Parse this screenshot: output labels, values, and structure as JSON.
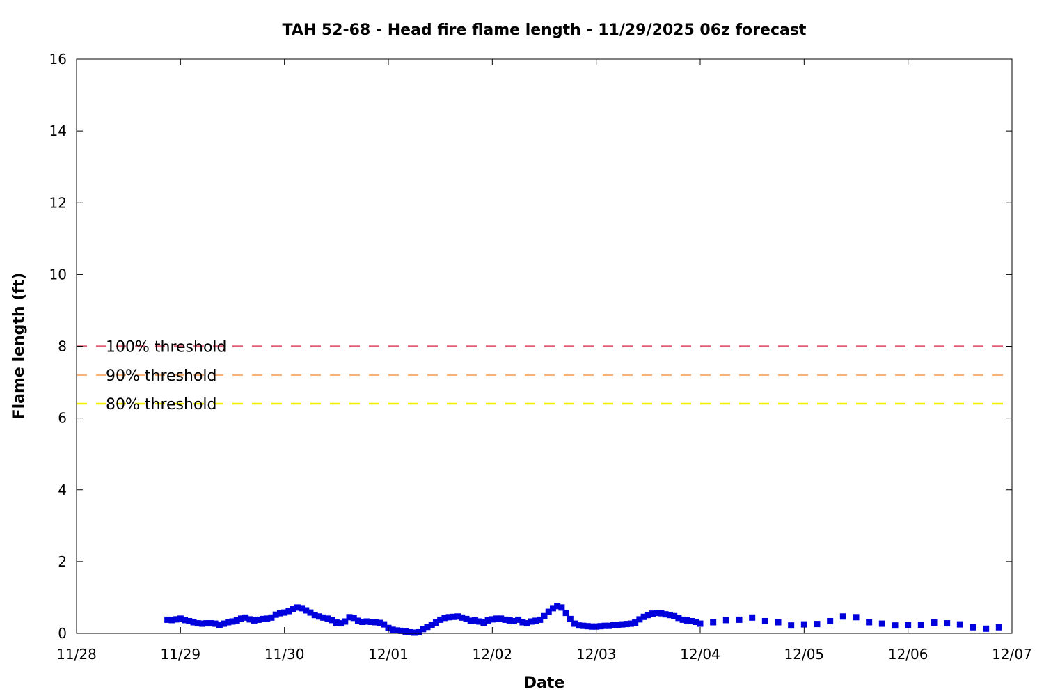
{
  "chart_data": {
    "type": "scatter",
    "title": "TAH 52-68 - Head fire flame length - 11/29/2025 06z forecast",
    "xlabel": "Date",
    "ylabel": "Flame length (ft)",
    "x_ticks": [
      "11/28",
      "11/29",
      "11/30",
      "12/01",
      "12/02",
      "12/03",
      "12/04",
      "12/05",
      "12/06",
      "12/07"
    ],
    "x_range": [
      "2025-11-28T00:00",
      "2025-12-07T00:00"
    ],
    "y_ticks": [
      0,
      2,
      4,
      6,
      8,
      10,
      12,
      14,
      16
    ],
    "ylim": [
      0,
      16
    ],
    "grid": false,
    "thresholds": [
      {
        "name": "100% threshold",
        "value": 8.0,
        "color": "#e0607a"
      },
      {
        "name": "90% threshold",
        "value": 7.2,
        "color": "#f5b27a"
      },
      {
        "name": "80% threshold",
        "value": 6.4,
        "color": "#f0f000"
      }
    ],
    "series": [
      {
        "color": "#0000dd",
        "marker": "square",
        "points": [
          [
            "2025-11-28T21:00",
            0.38
          ],
          [
            "2025-11-28T22:00",
            0.37
          ],
          [
            "2025-11-28T23:00",
            0.39
          ],
          [
            "2025-11-29T00:00",
            0.41
          ],
          [
            "2025-11-29T01:00",
            0.37
          ],
          [
            "2025-11-29T02:00",
            0.34
          ],
          [
            "2025-11-29T03:00",
            0.31
          ],
          [
            "2025-11-29T04:00",
            0.28
          ],
          [
            "2025-11-29T05:00",
            0.27
          ],
          [
            "2025-11-29T06:00",
            0.28
          ],
          [
            "2025-11-29T07:00",
            0.28
          ],
          [
            "2025-11-29T08:00",
            0.27
          ],
          [
            "2025-11-29T09:00",
            0.23
          ],
          [
            "2025-11-29T10:00",
            0.27
          ],
          [
            "2025-11-29T11:00",
            0.31
          ],
          [
            "2025-11-29T12:00",
            0.33
          ],
          [
            "2025-11-29T13:00",
            0.36
          ],
          [
            "2025-11-29T14:00",
            0.41
          ],
          [
            "2025-11-29T15:00",
            0.44
          ],
          [
            "2025-11-29T16:00",
            0.39
          ],
          [
            "2025-11-29T17:00",
            0.36
          ],
          [
            "2025-11-29T18:00",
            0.38
          ],
          [
            "2025-11-29T19:00",
            0.4
          ],
          [
            "2025-11-29T20:00",
            0.41
          ],
          [
            "2025-11-29T21:00",
            0.44
          ],
          [
            "2025-11-29T22:00",
            0.52
          ],
          [
            "2025-11-29T23:00",
            0.56
          ],
          [
            "2025-11-30T00:00",
            0.58
          ],
          [
            "2025-11-30T01:00",
            0.62
          ],
          [
            "2025-11-30T02:00",
            0.67
          ],
          [
            "2025-11-30T03:00",
            0.72
          ],
          [
            "2025-11-30T04:00",
            0.7
          ],
          [
            "2025-11-30T05:00",
            0.64
          ],
          [
            "2025-11-30T06:00",
            0.58
          ],
          [
            "2025-11-30T07:00",
            0.51
          ],
          [
            "2025-11-30T08:00",
            0.47
          ],
          [
            "2025-11-30T09:00",
            0.44
          ],
          [
            "2025-11-30T10:00",
            0.41
          ],
          [
            "2025-11-30T11:00",
            0.37
          ],
          [
            "2025-11-30T12:00",
            0.3
          ],
          [
            "2025-11-30T13:00",
            0.28
          ],
          [
            "2025-11-30T14:00",
            0.33
          ],
          [
            "2025-11-30T15:00",
            0.45
          ],
          [
            "2025-11-30T16:00",
            0.43
          ],
          [
            "2025-11-30T17:00",
            0.35
          ],
          [
            "2025-11-30T18:00",
            0.32
          ],
          [
            "2025-11-30T19:00",
            0.33
          ],
          [
            "2025-11-30T20:00",
            0.32
          ],
          [
            "2025-11-30T21:00",
            0.31
          ],
          [
            "2025-11-30T22:00",
            0.29
          ],
          [
            "2025-11-30T23:00",
            0.25
          ],
          [
            "2025-12-01T00:00",
            0.15
          ],
          [
            "2025-12-01T01:00",
            0.1
          ],
          [
            "2025-12-01T02:00",
            0.08
          ],
          [
            "2025-12-01T03:00",
            0.07
          ],
          [
            "2025-12-01T04:00",
            0.05
          ],
          [
            "2025-12-01T05:00",
            0.03
          ],
          [
            "2025-12-01T06:00",
            0.02
          ],
          [
            "2025-12-01T07:00",
            0.03
          ],
          [
            "2025-12-01T08:00",
            0.12
          ],
          [
            "2025-12-01T09:00",
            0.18
          ],
          [
            "2025-12-01T10:00",
            0.24
          ],
          [
            "2025-12-01T11:00",
            0.3
          ],
          [
            "2025-12-01T12:00",
            0.38
          ],
          [
            "2025-12-01T13:00",
            0.43
          ],
          [
            "2025-12-01T14:00",
            0.45
          ],
          [
            "2025-12-01T15:00",
            0.46
          ],
          [
            "2025-12-01T16:00",
            0.47
          ],
          [
            "2025-12-01T17:00",
            0.44
          ],
          [
            "2025-12-01T18:00",
            0.4
          ],
          [
            "2025-12-01T19:00",
            0.35
          ],
          [
            "2025-12-01T20:00",
            0.36
          ],
          [
            "2025-12-01T21:00",
            0.33
          ],
          [
            "2025-12-01T22:00",
            0.3
          ],
          [
            "2025-12-01T23:00",
            0.36
          ],
          [
            "2025-12-02T00:00",
            0.39
          ],
          [
            "2025-12-02T01:00",
            0.41
          ],
          [
            "2025-12-02T02:00",
            0.41
          ],
          [
            "2025-12-02T03:00",
            0.38
          ],
          [
            "2025-12-02T04:00",
            0.36
          ],
          [
            "2025-12-02T05:00",
            0.34
          ],
          [
            "2025-12-02T06:00",
            0.38
          ],
          [
            "2025-12-02T07:00",
            0.31
          ],
          [
            "2025-12-02T08:00",
            0.28
          ],
          [
            "2025-12-02T09:00",
            0.33
          ],
          [
            "2025-12-02T10:00",
            0.35
          ],
          [
            "2025-12-02T11:00",
            0.38
          ],
          [
            "2025-12-02T12:00",
            0.48
          ],
          [
            "2025-12-02T13:00",
            0.6
          ],
          [
            "2025-12-02T14:00",
            0.7
          ],
          [
            "2025-12-02T15:00",
            0.76
          ],
          [
            "2025-12-02T16:00",
            0.72
          ],
          [
            "2025-12-02T17:00",
            0.57
          ],
          [
            "2025-12-02T18:00",
            0.4
          ],
          [
            "2025-12-02T19:00",
            0.27
          ],
          [
            "2025-12-02T20:00",
            0.22
          ],
          [
            "2025-12-02T21:00",
            0.21
          ],
          [
            "2025-12-02T22:00",
            0.2
          ],
          [
            "2025-12-02T23:00",
            0.19
          ],
          [
            "2025-12-03T00:00",
            0.19
          ],
          [
            "2025-12-03T01:00",
            0.2
          ],
          [
            "2025-12-03T02:00",
            0.21
          ],
          [
            "2025-12-03T03:00",
            0.21
          ],
          [
            "2025-12-03T04:00",
            0.23
          ],
          [
            "2025-12-03T05:00",
            0.24
          ],
          [
            "2025-12-03T06:00",
            0.25
          ],
          [
            "2025-12-03T07:00",
            0.26
          ],
          [
            "2025-12-03T08:00",
            0.27
          ],
          [
            "2025-12-03T09:00",
            0.3
          ],
          [
            "2025-12-03T10:00",
            0.39
          ],
          [
            "2025-12-03T11:00",
            0.46
          ],
          [
            "2025-12-03T12:00",
            0.51
          ],
          [
            "2025-12-03T13:00",
            0.55
          ],
          [
            "2025-12-03T14:00",
            0.57
          ],
          [
            "2025-12-03T15:00",
            0.56
          ],
          [
            "2025-12-03T16:00",
            0.53
          ],
          [
            "2025-12-03T17:00",
            0.51
          ],
          [
            "2025-12-03T18:00",
            0.48
          ],
          [
            "2025-12-03T19:00",
            0.43
          ],
          [
            "2025-12-03T20:00",
            0.38
          ],
          [
            "2025-12-03T21:00",
            0.36
          ],
          [
            "2025-12-03T22:00",
            0.34
          ],
          [
            "2025-12-03T23:00",
            0.32
          ],
          [
            "2025-12-04T00:00",
            0.27
          ],
          [
            "2025-12-04T03:00",
            0.31
          ],
          [
            "2025-12-04T06:00",
            0.37
          ],
          [
            "2025-12-04T09:00",
            0.38
          ],
          [
            "2025-12-04T12:00",
            0.44
          ],
          [
            "2025-12-04T15:00",
            0.34
          ],
          [
            "2025-12-04T18:00",
            0.31
          ],
          [
            "2025-12-04T21:00",
            0.22
          ],
          [
            "2025-12-05T00:00",
            0.25
          ],
          [
            "2025-12-05T03:00",
            0.26
          ],
          [
            "2025-12-05T06:00",
            0.34
          ],
          [
            "2025-12-05T09:00",
            0.47
          ],
          [
            "2025-12-05T12:00",
            0.45
          ],
          [
            "2025-12-05T15:00",
            0.31
          ],
          [
            "2025-12-05T18:00",
            0.27
          ],
          [
            "2025-12-05T21:00",
            0.22
          ],
          [
            "2025-12-06T00:00",
            0.23
          ],
          [
            "2025-12-06T03:00",
            0.24
          ],
          [
            "2025-12-06T06:00",
            0.3
          ],
          [
            "2025-12-06T09:00",
            0.28
          ],
          [
            "2025-12-06T12:00",
            0.25
          ],
          [
            "2025-12-06T15:00",
            0.17
          ],
          [
            "2025-12-06T18:00",
            0.13
          ],
          [
            "2025-12-06T21:00",
            0.17
          ]
        ]
      }
    ]
  }
}
